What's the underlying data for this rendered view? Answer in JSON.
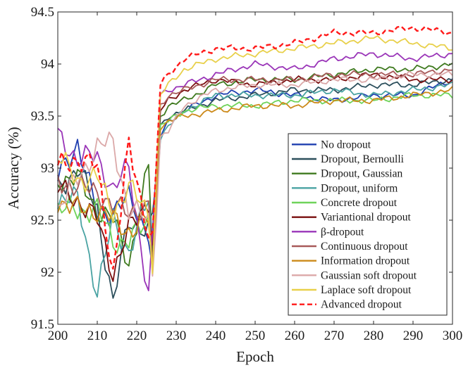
{
  "chart_data": {
    "type": "line",
    "xlabel": "Epoch",
    "ylabel": "Accuracy (%)",
    "xlim": [
      200,
      300
    ],
    "ylim": [
      91.5,
      94.5
    ],
    "xticks": [
      "200",
      "210",
      "220",
      "230",
      "240",
      "250",
      "260",
      "270",
      "280",
      "290",
      "300"
    ],
    "yticks": [
      "91.5",
      "92",
      "92.5",
      "93",
      "93.5",
      "94",
      "94.5"
    ],
    "grid": false,
    "legend_position": "bottom-right",
    "x_knots": [
      200,
      205,
      210,
      214,
      218,
      223,
      224,
      226,
      228,
      232,
      240,
      250,
      260,
      270,
      280,
      290,
      300
    ],
    "series": [
      {
        "name": "No dropout",
        "color": "#1f3fb0",
        "dash": "",
        "knots": [
          92.9,
          93.25,
          92.55,
          92.6,
          92.7,
          92.4,
          92.0,
          93.3,
          93.45,
          93.55,
          93.7,
          93.75,
          93.7,
          93.65,
          93.7,
          93.7,
          93.85
        ]
      },
      {
        "name": "Dropout, Bernoulli",
        "color": "#2c4f5c",
        "dash": "",
        "knots": [
          92.8,
          93.0,
          92.6,
          91.7,
          92.5,
          92.4,
          92.5,
          93.4,
          93.5,
          93.55,
          93.65,
          93.7,
          93.75,
          93.75,
          93.8,
          93.8,
          93.85
        ]
      },
      {
        "name": "Dropout, Gaussian",
        "color": "#3f7a1f",
        "dash": "",
        "knots": [
          92.9,
          92.9,
          92.6,
          92.5,
          92.1,
          93.0,
          92.2,
          93.5,
          93.6,
          93.65,
          93.8,
          93.85,
          93.85,
          93.9,
          93.95,
          93.95,
          94.0
        ]
      },
      {
        "name": "Dropout, uniform",
        "color": "#4aa3a3",
        "dash": "",
        "knots": [
          92.7,
          92.7,
          91.8,
          92.5,
          92.2,
          92.7,
          92.3,
          93.3,
          93.4,
          93.55,
          93.7,
          93.7,
          93.7,
          93.75,
          93.7,
          93.75,
          93.8
        ]
      },
      {
        "name": "Concrete dropout",
        "color": "#6fd35a",
        "dash": "",
        "knots": [
          92.6,
          92.6,
          92.6,
          92.3,
          92.3,
          92.5,
          92.1,
          93.4,
          93.45,
          93.55,
          93.6,
          93.6,
          93.65,
          93.65,
          93.65,
          93.7,
          93.7
        ]
      },
      {
        "name": "Variantional dropout",
        "color": "#7a0f0f",
        "dash": "",
        "knots": [
          92.8,
          92.7,
          92.5,
          92.0,
          92.4,
          92.7,
          92.3,
          93.55,
          93.65,
          93.75,
          93.85,
          93.8,
          93.85,
          93.85,
          93.9,
          93.85,
          93.85
        ]
      },
      {
        "name": "β-dropout",
        "color": "#9a35b8",
        "dash": "",
        "knots": [
          93.3,
          93.1,
          93.1,
          92.8,
          93.0,
          91.8,
          92.3,
          93.7,
          93.75,
          93.8,
          93.9,
          94.0,
          93.95,
          94.05,
          94.1,
          94.05,
          94.1
        ]
      },
      {
        "name": "Continuous dropout",
        "color": "#a85a5a",
        "dash": "",
        "knots": [
          92.9,
          92.8,
          92.8,
          92.6,
          92.6,
          92.6,
          92.1,
          93.6,
          93.7,
          93.75,
          93.85,
          93.85,
          93.85,
          93.9,
          93.9,
          93.9,
          93.95
        ]
      },
      {
        "name": "Information dropout",
        "color": "#cc8a1a",
        "dash": "",
        "knots": [
          92.7,
          92.6,
          92.6,
          92.5,
          92.4,
          92.5,
          92.0,
          93.4,
          93.45,
          93.5,
          93.55,
          93.6,
          93.6,
          93.65,
          93.65,
          93.7,
          93.75
        ]
      },
      {
        "name": "Gaussian soft dropout",
        "color": "#dba8a8",
        "dash": "",
        "knots": [
          92.6,
          92.9,
          93.2,
          93.25,
          92.6,
          92.5,
          92.0,
          93.3,
          93.35,
          93.6,
          93.75,
          93.8,
          93.8,
          93.85,
          93.85,
          93.9,
          93.9
        ]
      },
      {
        "name": "Laplace soft dropout",
        "color": "#e8d04a",
        "dash": "",
        "knots": [
          93.1,
          92.9,
          92.9,
          92.6,
          92.8,
          92.6,
          92.1,
          93.7,
          93.8,
          93.95,
          94.05,
          94.1,
          94.15,
          94.2,
          94.25,
          94.2,
          94.15
        ]
      },
      {
        "name": "Advanced dropout",
        "color": "#ff1a1a",
        "dash": "7,4",
        "knots": [
          93.0,
          93.1,
          93.0,
          92.0,
          93.2,
          92.4,
          92.3,
          93.8,
          93.9,
          94.05,
          94.15,
          94.15,
          94.2,
          94.3,
          94.3,
          94.35,
          94.3
        ]
      }
    ]
  }
}
